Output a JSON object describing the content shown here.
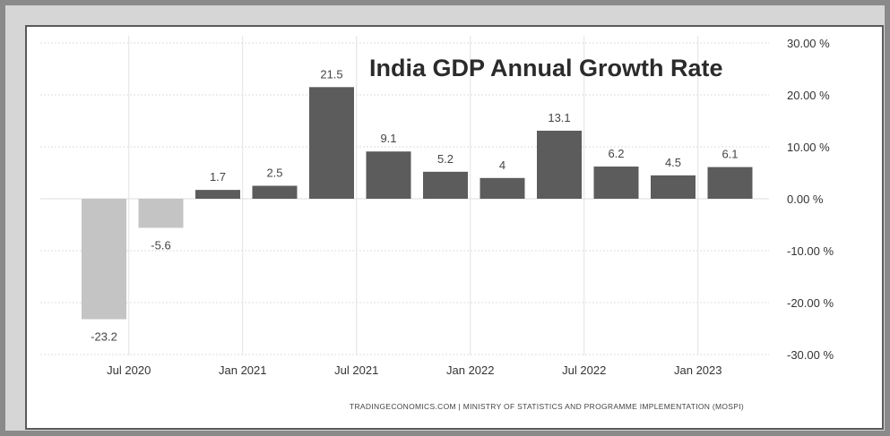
{
  "chart_data": {
    "type": "bar",
    "title": "India GDP Annual Growth Rate",
    "source": "TRADINGECONOMICS.COM  |  MINISTRY OF STATISTICS AND PROGRAMME IMPLEMENTATION (MOSPI)",
    "values": [
      -23.2,
      -5.6,
      1.7,
      2.5,
      21.5,
      9.1,
      5.2,
      4,
      13.1,
      6.2,
      4.5,
      6.1
    ],
    "value_labels": [
      "-23.2",
      "-5.6",
      "1.7",
      "2.5",
      "21.5",
      "9.1",
      "5.2",
      "4",
      "13.1",
      "6.2",
      "4.5",
      "6.1"
    ],
    "x_tick_labels": [
      "Jul 2020",
      "Jan 2021",
      "Jul 2021",
      "Jan 2022",
      "Jul 2022",
      "Jan 2023"
    ],
    "y_tick_labels": [
      "30.00 %",
      "20.00 %",
      "10.00 %",
      "0.00 %",
      "-10.00 %",
      "-20.00 %",
      "-30.00 %"
    ],
    "ylim": [
      -30,
      30
    ],
    "grid": true,
    "y_axis_side": "right",
    "colors": {
      "positive": "#5c5c5c",
      "negative": "#c4c4c4"
    }
  }
}
